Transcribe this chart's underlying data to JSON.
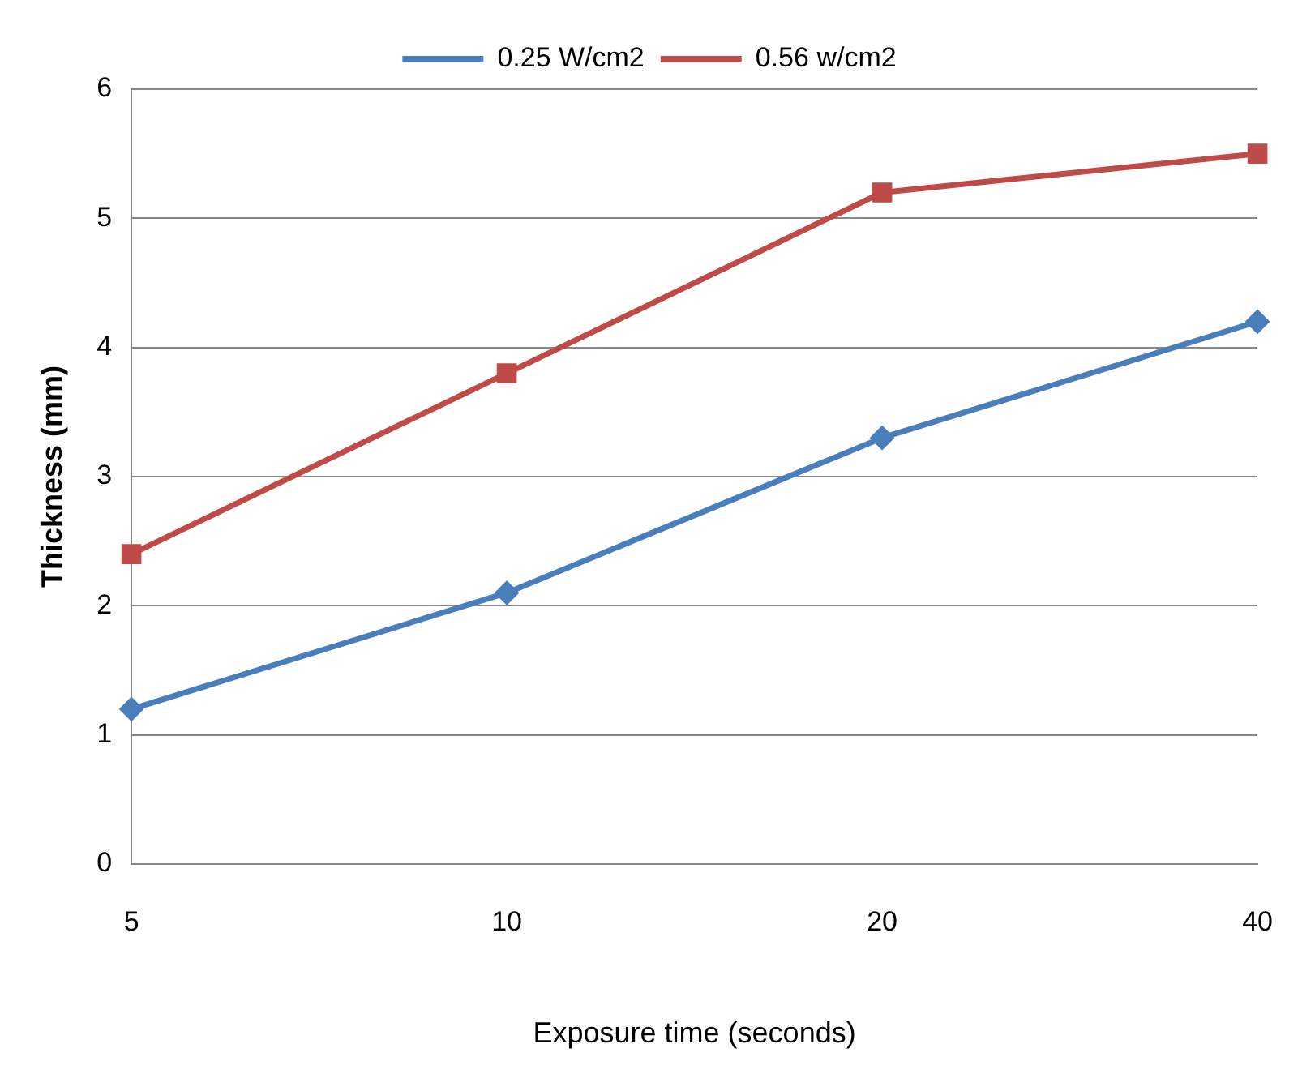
{
  "chart_data": {
    "type": "line",
    "xlabel": "Exposure time (seconds)",
    "ylabel": "Thickness (mm)",
    "categories": [
      "5",
      "10",
      "20",
      "40"
    ],
    "series": [
      {
        "name": "0.25 W/cm2",
        "color": "#4a7ebb",
        "marker": "diamond",
        "values": [
          1.2,
          2.1,
          3.3,
          4.2
        ]
      },
      {
        "name": "0.56 w/cm2",
        "color": "#be4b48",
        "marker": "square",
        "values": [
          2.4,
          3.8,
          5.2,
          5.5
        ]
      }
    ],
    "ylim": [
      0,
      6
    ],
    "yticks": [
      0,
      1,
      2,
      3,
      4,
      5,
      6
    ],
    "grid": "y",
    "legend": "top",
    "line_style": "solid"
  }
}
